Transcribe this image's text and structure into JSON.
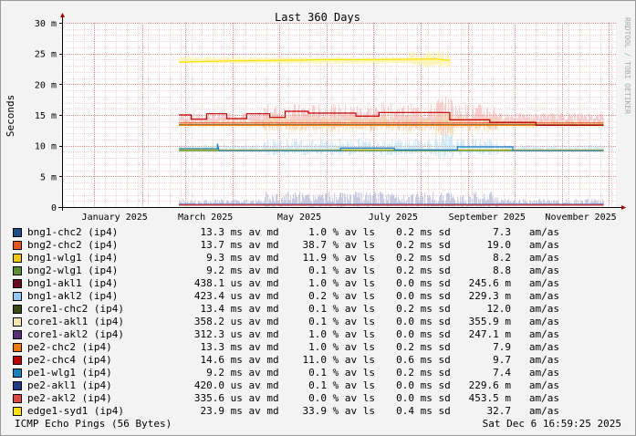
{
  "chart_data": {
    "type": "line",
    "title": "Last 360 Days",
    "ylabel": "Seconds",
    "watermark": "RRDTOOL / TOBI OETIKER",
    "ylim": [
      0,
      30
    ],
    "y_ticks": [
      "0",
      "5 m",
      "10 m",
      "15 m",
      "20 m",
      "25 m",
      "30 m"
    ],
    "x_ticks": [
      "January 2025",
      "March 2025",
      "May 2025",
      "July 2025",
      "September 2025",
      "November 2025"
    ],
    "x_domain": [
      "2024-12-11",
      "2025-12-06"
    ],
    "series": [
      {
        "name": "bng1-chc2 (ip4)",
        "color": "#1f4e8c",
        "path": [
          [
            "2025-02-25",
            13.3
          ],
          [
            "2025-11-28",
            13.3
          ]
        ]
      },
      {
        "name": "bng2-chc2 (ip4)",
        "color": "#e8531f",
        "path": [
          [
            "2025-02-25",
            13.7
          ],
          [
            "2025-11-28",
            13.7
          ]
        ]
      },
      {
        "name": "bng1-wlg1 (ip4)",
        "color": "#f2c511",
        "path": [
          [
            "2025-02-25",
            9.3
          ],
          [
            "2025-11-28",
            9.3
          ]
        ]
      },
      {
        "name": "bng2-wlg1 (ip4)",
        "color": "#5a8f2d",
        "path": [
          [
            "2025-02-25",
            9.2
          ],
          [
            "2025-11-28",
            9.2
          ]
        ]
      },
      {
        "name": "bng1-akl1 (ip4)",
        "color": "#6e0a1e",
        "path": [
          [
            "2025-02-25",
            0.4
          ],
          [
            "2025-11-28",
            0.4
          ]
        ]
      },
      {
        "name": "bng1-akl2 (ip4)",
        "color": "#8fc8f0",
        "path": [
          [
            "2025-02-25",
            0.4
          ],
          [
            "2025-11-28",
            0.4
          ]
        ]
      },
      {
        "name": "core1-chc2 (ip4)",
        "color": "#3a4a10",
        "path": [
          [
            "2025-02-25",
            13.4
          ],
          [
            "2025-11-28",
            13.4
          ]
        ]
      },
      {
        "name": "core1-akl1 (ip4)",
        "color": "#f6e7a8",
        "path": [
          [
            "2025-02-25",
            0.36
          ],
          [
            "2025-11-28",
            0.36
          ]
        ]
      },
      {
        "name": "core1-akl2 (ip4)",
        "color": "#5a2d7a",
        "path": [
          [
            "2025-02-25",
            0.31
          ],
          [
            "2025-11-28",
            0.31
          ]
        ]
      },
      {
        "name": "pe2-chc2 (ip4)",
        "color": "#f07a00",
        "path": [
          [
            "2025-02-25",
            13.3
          ],
          [
            "2025-11-28",
            13.3
          ]
        ]
      },
      {
        "name": "pe2-chc4 (ip4)",
        "color": "#c00000",
        "path": [
          [
            "2025-02-25",
            15.0
          ],
          [
            "2025-03-05",
            15.0
          ],
          [
            "2025-03-05",
            14.3
          ],
          [
            "2025-03-15",
            14.3
          ],
          [
            "2025-03-15",
            15.2
          ],
          [
            "2025-03-28",
            15.2
          ],
          [
            "2025-03-28",
            14.4
          ],
          [
            "2025-04-10",
            14.4
          ],
          [
            "2025-04-10",
            15.2
          ],
          [
            "2025-04-25",
            15.2
          ],
          [
            "2025-04-25",
            14.6
          ],
          [
            "2025-05-05",
            14.6
          ],
          [
            "2025-05-05",
            15.6
          ],
          [
            "2025-05-20",
            15.6
          ],
          [
            "2025-05-20",
            15.3
          ],
          [
            "2025-06-20",
            15.3
          ],
          [
            "2025-06-20",
            14.8
          ],
          [
            "2025-07-05",
            14.8
          ],
          [
            "2025-07-05",
            15.4
          ],
          [
            "2025-08-20",
            15.4
          ],
          [
            "2025-08-20",
            14.2
          ],
          [
            "2025-09-15",
            14.2
          ],
          [
            "2025-09-15",
            13.8
          ],
          [
            "2025-10-15",
            13.8
          ],
          [
            "2025-10-15",
            13.3
          ],
          [
            "2025-11-28",
            13.3
          ]
        ]
      },
      {
        "name": "pe1-wlg1 (ip4)",
        "color": "#1a7fc1",
        "path": [
          [
            "2025-02-25",
            9.5
          ],
          [
            "2025-03-22",
            9.5
          ],
          [
            "2025-03-22",
            10.3
          ],
          [
            "2025-03-23",
            9.2
          ],
          [
            "2025-06-10",
            9.2
          ],
          [
            "2025-06-10",
            9.6
          ],
          [
            "2025-07-15",
            9.6
          ],
          [
            "2025-07-15",
            9.3
          ],
          [
            "2025-08-25",
            9.3
          ],
          [
            "2025-08-25",
            9.8
          ],
          [
            "2025-09-30",
            9.8
          ],
          [
            "2025-09-30",
            9.2
          ],
          [
            "2025-11-28",
            9.2
          ]
        ]
      },
      {
        "name": "pe2-akl1 (ip4)",
        "color": "#1f3c88",
        "path": [
          [
            "2025-02-25",
            0.42
          ],
          [
            "2025-11-28",
            0.42
          ]
        ]
      },
      {
        "name": "pe2-akl2 (ip4)",
        "color": "#e2453d",
        "path": [
          [
            "2025-02-25",
            0.34
          ],
          [
            "2025-11-28",
            0.34
          ]
        ]
      },
      {
        "name": "edge1-syd1 (ip4)",
        "color": "#ffe000",
        "path": [
          [
            "2025-02-25",
            23.6
          ],
          [
            "2025-04-01",
            23.8
          ],
          [
            "2025-05-01",
            23.9
          ],
          [
            "2025-06-01",
            24.0
          ],
          [
            "2025-07-01",
            24.0
          ],
          [
            "2025-08-10",
            24.1
          ],
          [
            "2025-08-20",
            23.9
          ]
        ]
      }
    ],
    "legend": [
      {
        "name": "bng1-chc2 (ip4)",
        "color": "#1f4e8c",
        "avg": "13.3",
        "avg_unit": "ms",
        "loss": "1.0",
        "sd": "0.2",
        "sd_unit": "ms",
        "ratio": "7.3"
      },
      {
        "name": "bng2-chc2 (ip4)",
        "color": "#e8531f",
        "avg": "13.7",
        "avg_unit": "ms",
        "loss": "38.7",
        "sd": "0.2",
        "sd_unit": "ms",
        "ratio": "19.0"
      },
      {
        "name": "bng1-wlg1 (ip4)",
        "color": "#f2c511",
        "avg": "9.3",
        "avg_unit": "ms",
        "loss": "11.9",
        "sd": "0.2",
        "sd_unit": "ms",
        "ratio": "8.2"
      },
      {
        "name": "bng2-wlg1 (ip4)",
        "color": "#5a8f2d",
        "avg": "9.2",
        "avg_unit": "ms",
        "loss": "0.1",
        "sd": "0.2",
        "sd_unit": "ms",
        "ratio": "8.8"
      },
      {
        "name": "bng1-akl1 (ip4)",
        "color": "#6e0a1e",
        "avg": "438.1",
        "avg_unit": "us",
        "loss": "1.0",
        "sd": "0.0",
        "sd_unit": "ms",
        "ratio": "245.6 m"
      },
      {
        "name": "bng1-akl2 (ip4)",
        "color": "#8fc8f0",
        "avg": "423.4",
        "avg_unit": "us",
        "loss": "0.2",
        "sd": "0.0",
        "sd_unit": "ms",
        "ratio": "229.3 m"
      },
      {
        "name": "core1-chc2 (ip4)",
        "color": "#3a4a10",
        "avg": "13.4",
        "avg_unit": "ms",
        "loss": "0.1",
        "sd": "0.2",
        "sd_unit": "ms",
        "ratio": "12.0"
      },
      {
        "name": "core1-akl1 (ip4)",
        "color": "#f6e7a8",
        "avg": "358.2",
        "avg_unit": "us",
        "loss": "0.1",
        "sd": "0.0",
        "sd_unit": "ms",
        "ratio": "355.9 m"
      },
      {
        "name": "core1-akl2 (ip4)",
        "color": "#5a2d7a",
        "avg": "312.3",
        "avg_unit": "us",
        "loss": "1.0",
        "sd": "0.0",
        "sd_unit": "ms",
        "ratio": "247.1 m"
      },
      {
        "name": "pe2-chc2 (ip4)",
        "color": "#f07a00",
        "avg": "13.3",
        "avg_unit": "ms",
        "loss": "1.0",
        "sd": "0.2",
        "sd_unit": "ms",
        "ratio": "7.9"
      },
      {
        "name": "pe2-chc4 (ip4)",
        "color": "#c00000",
        "avg": "14.6",
        "avg_unit": "ms",
        "loss": "11.0",
        "sd": "0.6",
        "sd_unit": "ms",
        "ratio": "9.7"
      },
      {
        "name": "pe1-wlg1 (ip4)",
        "color": "#1a7fc1",
        "avg": "9.2",
        "avg_unit": "ms",
        "loss": "0.1",
        "sd": "0.2",
        "sd_unit": "ms",
        "ratio": "7.4"
      },
      {
        "name": "pe2-akl1 (ip4)",
        "color": "#1f3c88",
        "avg": "420.0",
        "avg_unit": "us",
        "loss": "0.1",
        "sd": "0.0",
        "sd_unit": "ms",
        "ratio": "229.6 m"
      },
      {
        "name": "pe2-akl2 (ip4)",
        "color": "#e2453d",
        "avg": "335.6",
        "avg_unit": "us",
        "loss": "0.0",
        "sd": "0.0",
        "sd_unit": "ms",
        "ratio": "453.5 m"
      },
      {
        "name": "edge1-syd1 (ip4)",
        "color": "#ffe000",
        "avg": "23.9",
        "avg_unit": "ms",
        "loss": "33.9",
        "sd": "0.4",
        "sd_unit": "ms",
        "ratio": "32.7"
      }
    ],
    "legend_labels": {
      "av_md": "av md",
      "pct_av_ls": "% av ls",
      "sd": "sd",
      "am_as": "am/as"
    },
    "grid": true
  },
  "footer": {
    "left": "ICMP Echo Pings (56 Bytes)",
    "right": "Sat Dec  6 16:59:25 2025"
  }
}
